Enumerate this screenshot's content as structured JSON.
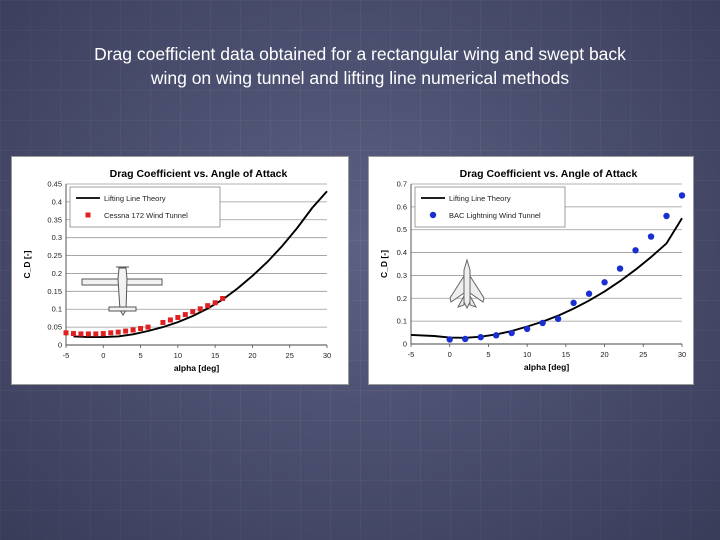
{
  "slide": {
    "title_line1": "Drag coefficient data obtained for a rectangular wing and swept back",
    "title_line2": "wing on wing tunnel and lifting line numerical methods"
  },
  "colors": {
    "background": "#4d5170",
    "theory_line": "#000000",
    "left_markers": "#e02020",
    "right_markers": "#1a2fd0"
  },
  "icons": [
    "cessna-plane-icon",
    "swept-wing-jet-icon"
  ],
  "chart_data": [
    {
      "type": "line",
      "title": "Drag Coefficient vs. Angle of Attack",
      "xlabel": "alpha [deg]",
      "ylabel": "C_D [-]",
      "xlim": [
        -5,
        30
      ],
      "ylim": [
        0,
        0.45
      ],
      "xticks": [
        "-5",
        "0",
        "5",
        "10",
        "15",
        "20",
        "25",
        "30"
      ],
      "yticks": [
        "0",
        "0.05",
        "0.1",
        "0.15",
        "0.2",
        "0.25",
        "0.3",
        "0.35",
        "0.4",
        "0.45"
      ],
      "grid": true,
      "legend_position": "top-left",
      "series": [
        {
          "name": "Lifting Line Theory",
          "style": "line",
          "x": [
            -4,
            -2,
            0,
            2,
            4,
            6,
            8,
            10,
            12,
            14,
            16,
            18,
            20,
            22,
            24,
            26,
            28,
            30
          ],
          "y": [
            0.024,
            0.022,
            0.022,
            0.024,
            0.03,
            0.039,
            0.05,
            0.064,
            0.081,
            0.102,
            0.127,
            0.158,
            0.193,
            0.232,
            0.277,
            0.327,
            0.383,
            0.43
          ]
        },
        {
          "name": "Cessna 172 Wind Tunnel",
          "style": "square-markers",
          "x": [
            -5,
            -4,
            -3,
            -2,
            -1,
            0,
            1,
            2,
            3,
            4,
            5,
            6,
            8,
            9,
            10,
            11,
            12,
            13,
            14,
            15,
            16
          ],
          "y": [
            0.034,
            0.032,
            0.031,
            0.031,
            0.031,
            0.032,
            0.034,
            0.036,
            0.039,
            0.042,
            0.046,
            0.05,
            0.063,
            0.07,
            0.077,
            0.085,
            0.093,
            0.101,
            0.11,
            0.118,
            0.13
          ]
        }
      ]
    },
    {
      "type": "line",
      "title": "Drag Coefficient vs. Angle of Attack",
      "xlabel": "alpha [deg]",
      "ylabel": "C_D [-]",
      "xlim": [
        -5,
        30
      ],
      "ylim": [
        0,
        0.7
      ],
      "xticks": [
        "-5",
        "0",
        "5",
        "10",
        "15",
        "20",
        "25",
        "30"
      ],
      "yticks": [
        "0",
        "0.1",
        "0.2",
        "0.3",
        "0.4",
        "0.5",
        "0.6",
        "0.7"
      ],
      "grid": true,
      "legend_position": "top-left",
      "series": [
        {
          "name": "Lifting Line Theory",
          "style": "line",
          "x": [
            -5,
            -2,
            0,
            2,
            4,
            6,
            8,
            10,
            12,
            14,
            16,
            18,
            20,
            22,
            24,
            26,
            28,
            30
          ],
          "y": [
            0.04,
            0.035,
            0.028,
            0.027,
            0.032,
            0.042,
            0.057,
            0.076,
            0.098,
            0.124,
            0.155,
            0.19,
            0.23,
            0.275,
            0.325,
            0.38,
            0.44,
            0.55
          ]
        },
        {
          "name": "BAC Lightning Wind Tunnel",
          "style": "circle-markers",
          "x": [
            0,
            2,
            4,
            6,
            8,
            10,
            12,
            14,
            16,
            18,
            20,
            22,
            24,
            26,
            28,
            30
          ],
          "y": [
            0.02,
            0.022,
            0.03,
            0.038,
            0.048,
            0.066,
            0.092,
            0.11,
            0.18,
            0.22,
            0.27,
            0.33,
            0.41,
            0.47,
            0.56,
            0.65
          ]
        }
      ]
    }
  ]
}
